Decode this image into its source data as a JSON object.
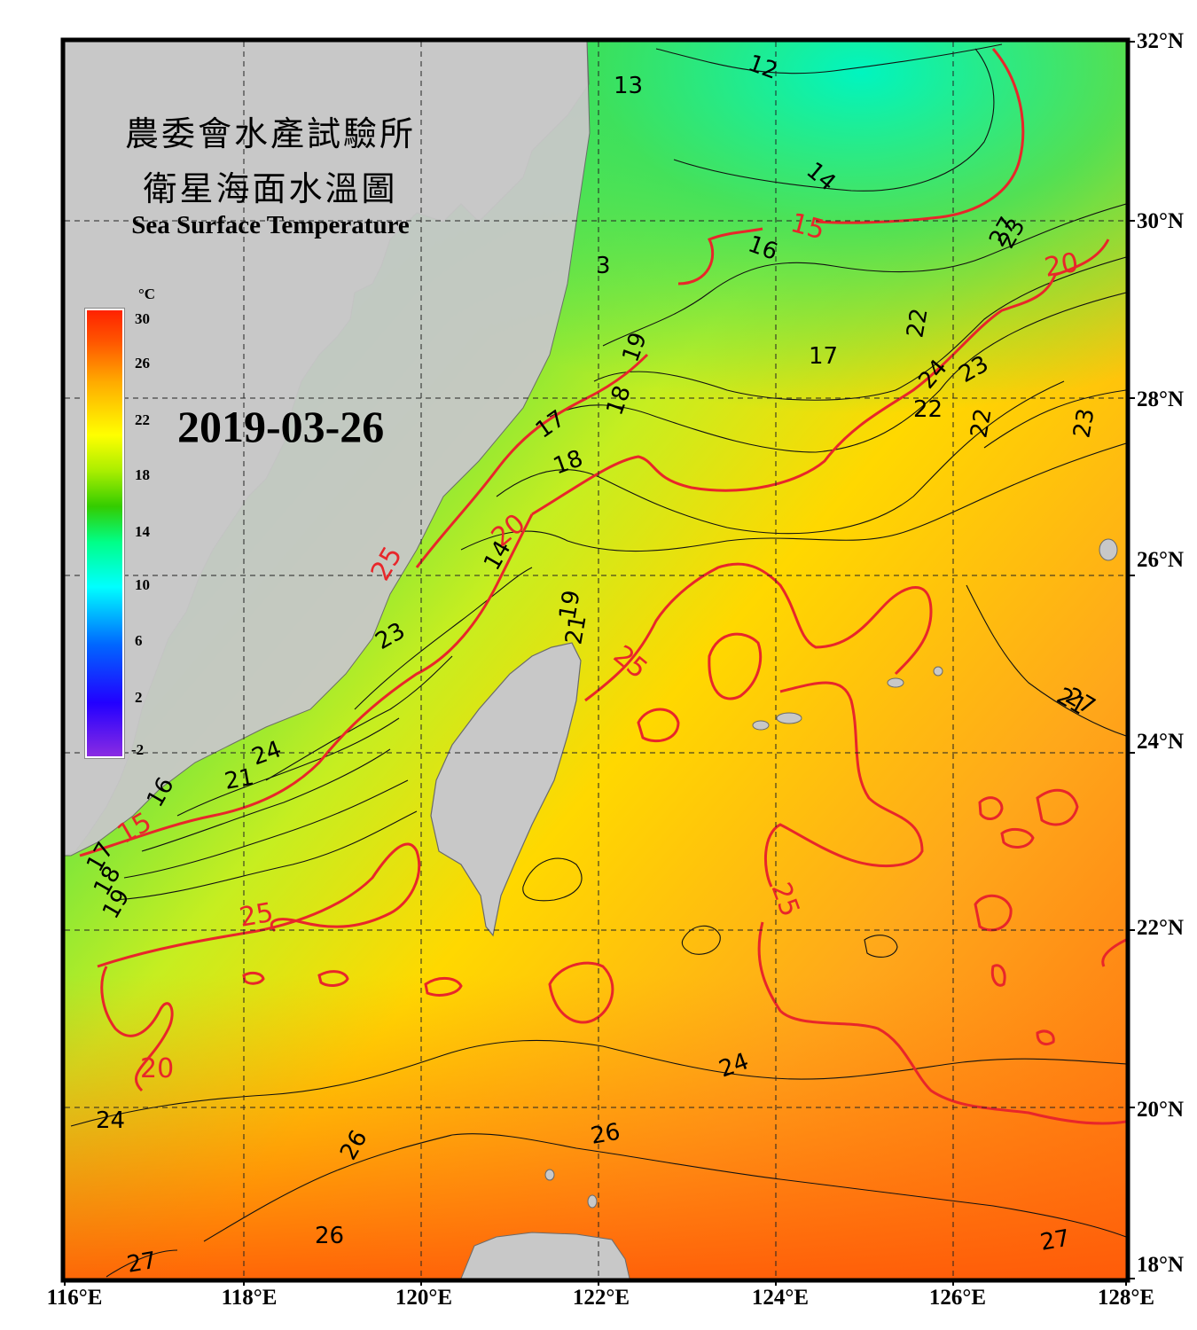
{
  "header": {
    "title_line1": "農委會水產試驗所",
    "title_line2": "衛星海面水溫圖",
    "title_en": "Sea Surface Temperature"
  },
  "date": "2019-03-26",
  "colorbar": {
    "unit": "°C",
    "ticks": [
      "30",
      "26",
      "22",
      "18",
      "14",
      "10",
      "6",
      "2",
      "-2"
    ]
  },
  "axes": {
    "lat_labels": [
      "32°N",
      "30°N",
      "28°N",
      "26°N",
      "24°N",
      "22°N",
      "20°N",
      "18°N"
    ],
    "lon_labels": [
      "116°E",
      "118°E",
      "120°E",
      "122°E",
      "124°E",
      "126°E",
      "128°E"
    ]
  },
  "contour_labels": {
    "black": [
      "12",
      "13",
      "14",
      "16",
      "17",
      "18",
      "19",
      "17",
      "18",
      "14",
      "19",
      "21",
      "22",
      "23",
      "24",
      "23",
      "22",
      "23",
      "24",
      "21",
      "16",
      "17",
      "18",
      "19",
      "21",
      "22",
      "23",
      "24",
      "24",
      "26",
      "26",
      "26",
      "27",
      "27",
      "27",
      "27",
      "3"
    ],
    "red": [
      "15",
      "20",
      "20",
      "15",
      "25",
      "25",
      "25",
      "25",
      "20"
    ]
  },
  "colors": {
    "warm_sea": "#ff9a1a",
    "cool_sea": "#4dff80",
    "land": "#c8c8c8",
    "contour_red": "#e8262a"
  }
}
